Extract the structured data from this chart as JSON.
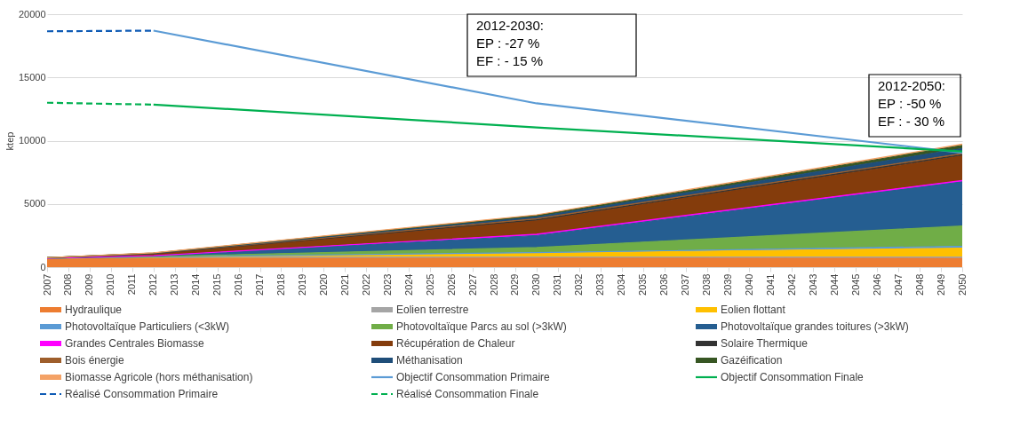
{
  "chart_data": {
    "type": "area",
    "stacked": true,
    "ylabel": "ktep",
    "ylim": [
      0,
      20000
    ],
    "yticks": [
      0,
      5000,
      10000,
      15000,
      20000
    ],
    "xlim": [
      2007,
      2050
    ],
    "xticks": [
      2007,
      2008,
      2009,
      2010,
      2011,
      2012,
      2013,
      2014,
      2015,
      2016,
      2017,
      2018,
      2019,
      2020,
      2021,
      2022,
      2023,
      2024,
      2025,
      2026,
      2027,
      2028,
      2029,
      2030,
      2031,
      2032,
      2033,
      2034,
      2035,
      2036,
      2037,
      2038,
      2039,
      2040,
      2041,
      2042,
      2043,
      2044,
      2045,
      2046,
      2047,
      2048,
      2049,
      2050
    ],
    "grid": "y",
    "legend": "bottom",
    "x": [
      2007,
      2012,
      2030,
      2050
    ],
    "series": [
      {
        "name": "Hydraulique",
        "color": "#ed7d31",
        "values": [
          700,
          750,
          750,
          700
        ]
      },
      {
        "name": "Eolien terrestre",
        "color": "#a5a5a5",
        "values": [
          0,
          30,
          50,
          100
        ]
      },
      {
        "name": "Eolien flottant",
        "color": "#ffc000",
        "values": [
          0,
          0,
          300,
          700
        ]
      },
      {
        "name": "Photovoltaïque Particuliers (<3kW)",
        "color": "#5b9bd5",
        "values": [
          0,
          20,
          50,
          150
        ]
      },
      {
        "name": "Photovoltaïque Parcs au sol (>3kW)",
        "color": "#70ad47",
        "values": [
          0,
          30,
          400,
          1600
        ]
      },
      {
        "name": "Photovoltaïque grandes toitures (>3kW)",
        "color": "#255e91",
        "values": [
          0,
          50,
          950,
          3500
        ]
      },
      {
        "name": "Grandes Centrales Biomasse",
        "color": "#ff00ff",
        "values": [
          0,
          20,
          100,
          100
        ]
      },
      {
        "name": "Récupération de Chaleur",
        "color": "#843c0c",
        "values": [
          50,
          150,
          1100,
          1950
        ]
      },
      {
        "name": "Solaire Thermique",
        "color": "#333333",
        "values": [
          0,
          20,
          50,
          80
        ]
      },
      {
        "name": "Bois énergie",
        "color": "#9e5e2b",
        "values": [
          0,
          20,
          80,
          100
        ]
      },
      {
        "name": "Méthanisation",
        "color": "#1f4e79",
        "values": [
          0,
          10,
          150,
          400
        ]
      },
      {
        "name": "Gazéification",
        "color": "#375623",
        "values": [
          0,
          10,
          100,
          250
        ]
      },
      {
        "name": "Biomasse Agricole (hors méthanisation)",
        "color": "#f4a266",
        "values": [
          0,
          20,
          60,
          100
        ]
      },
      {
        "name": "Objectif Consommation Primaire",
        "type": "line",
        "color": "#5b9bd5",
        "line_style": "solid",
        "x": [
          2012,
          2030,
          2050
        ],
        "values": [
          18700,
          12950,
          9050
        ]
      },
      {
        "name": "Objectif Consommation Finale",
        "type": "line",
        "color": "#00b050",
        "line_style": "solid",
        "x": [
          2012,
          2030,
          2050
        ],
        "values": [
          12850,
          11050,
          9150
        ]
      },
      {
        "name": "Réalisé Consommation Primaire",
        "type": "line",
        "color": "#0f5bb5",
        "line_style": "dashed",
        "x": [
          2007,
          2012
        ],
        "values": [
          18650,
          18700
        ]
      },
      {
        "name": "Réalisé Consommation Finale",
        "type": "line",
        "color": "#00b050",
        "line_style": "dashed",
        "x": [
          2007,
          2012
        ],
        "values": [
          13000,
          12850
        ]
      }
    ],
    "annotations": [
      "2012-2030:\nEP : -27 %\nEF : - 15 %",
      "2012-2050:\nEP : -50 %\nEF : - 30 %"
    ]
  }
}
